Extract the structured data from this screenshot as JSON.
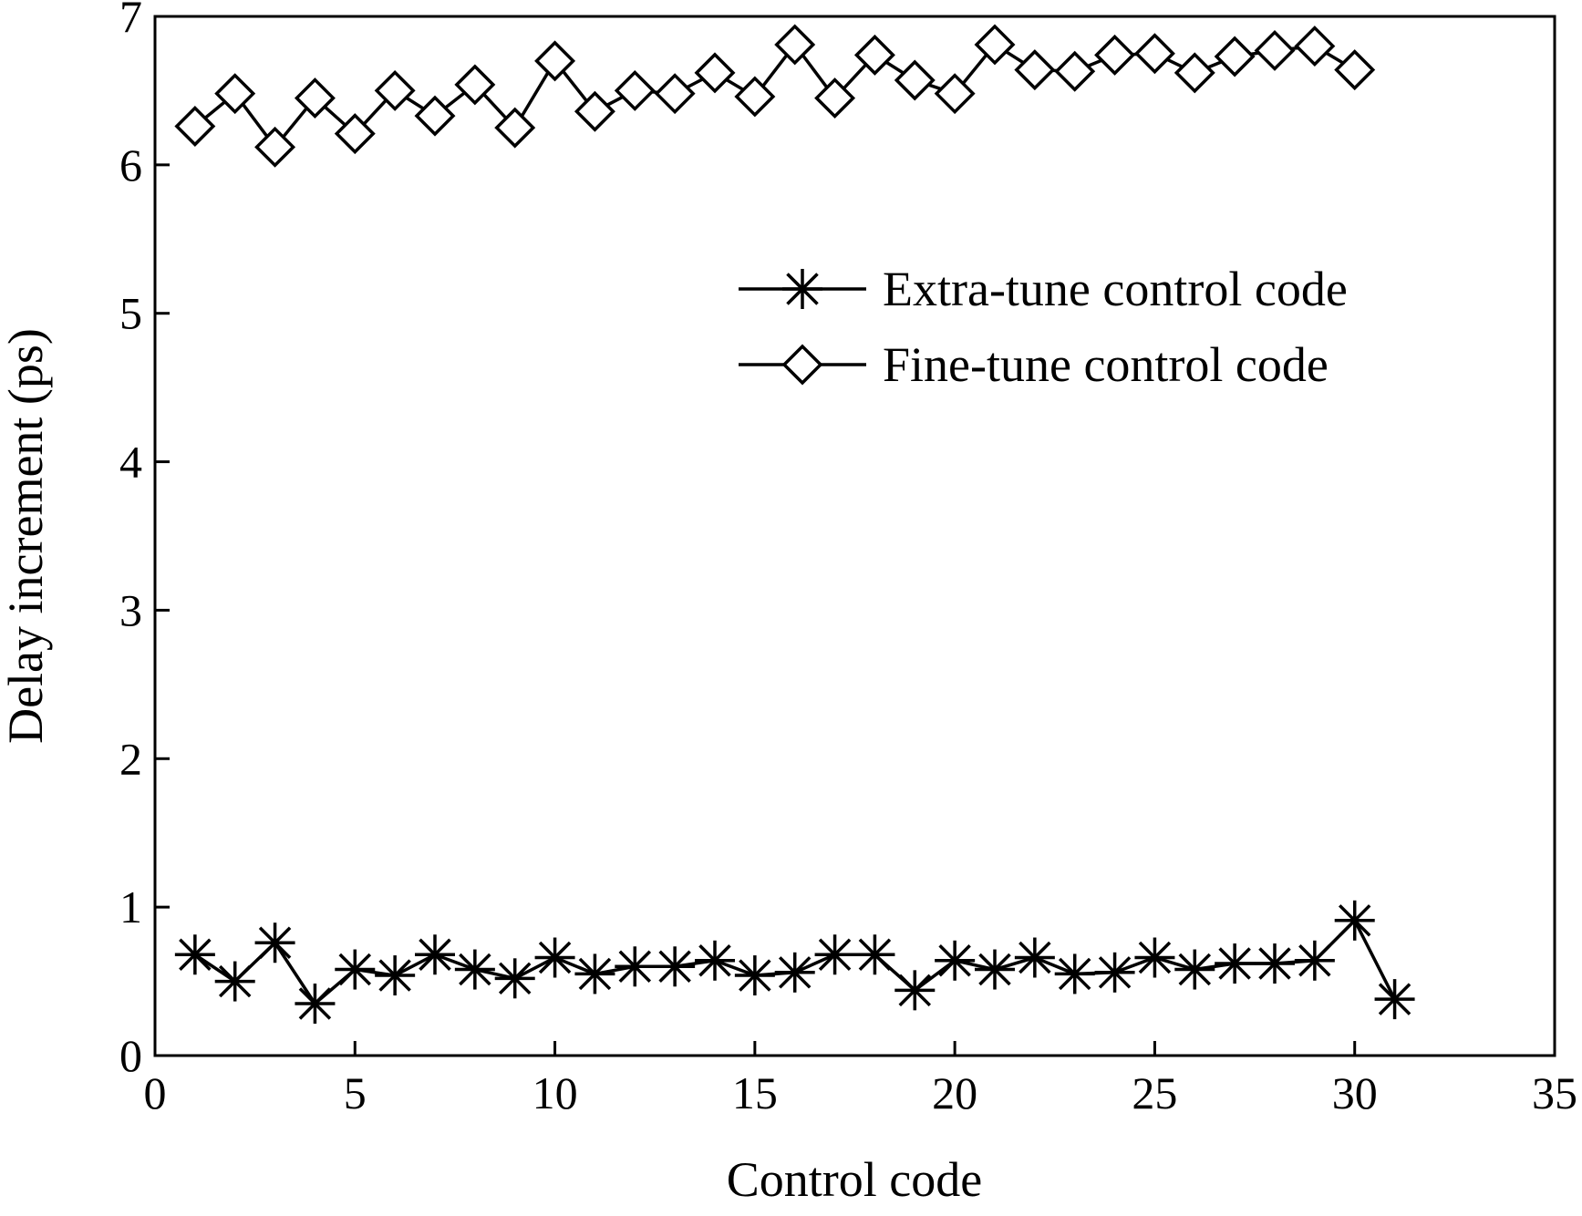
{
  "chart_data": {
    "type": "line",
    "xlabel": "Control code",
    "ylabel": "Delay increment (ps)",
    "xlim": [
      0,
      35
    ],
    "ylim": [
      0,
      7
    ],
    "xticks": [
      0,
      5,
      10,
      15,
      20,
      25,
      30,
      35
    ],
    "yticks": [
      0,
      1,
      2,
      3,
      4,
      5,
      6,
      7
    ],
    "grid": false,
    "legend_position": "upper-right",
    "series": [
      {
        "name": "Extra-tune control code",
        "marker": "asterisk",
        "x": [
          1,
          2,
          3,
          4,
          5,
          6,
          7,
          8,
          9,
          10,
          11,
          12,
          13,
          14,
          15,
          16,
          17,
          18,
          19,
          20,
          21,
          22,
          23,
          24,
          25,
          26,
          27,
          28,
          29,
          30,
          31
        ],
        "values": [
          0.68,
          0.5,
          0.76,
          0.35,
          0.58,
          0.54,
          0.68,
          0.58,
          0.52,
          0.66,
          0.55,
          0.6,
          0.6,
          0.64,
          0.54,
          0.56,
          0.68,
          0.68,
          0.44,
          0.64,
          0.58,
          0.66,
          0.55,
          0.56,
          0.66,
          0.58,
          0.62,
          0.62,
          0.64,
          0.91,
          0.38
        ]
      },
      {
        "name": "Fine-tune control code",
        "marker": "diamond",
        "x": [
          1,
          2,
          3,
          4,
          5,
          6,
          7,
          8,
          9,
          10,
          11,
          12,
          13,
          14,
          15,
          16,
          17,
          18,
          19,
          20,
          21,
          22,
          23,
          24,
          25,
          26,
          27,
          28,
          29,
          30
        ],
        "values": [
          6.26,
          6.48,
          6.12,
          6.45,
          6.21,
          6.5,
          6.33,
          6.54,
          6.25,
          6.7,
          6.36,
          6.5,
          6.48,
          6.62,
          6.46,
          6.81,
          6.45,
          6.74,
          6.57,
          6.48,
          6.81,
          6.64,
          6.63,
          6.74,
          6.75,
          6.62,
          6.73,
          6.77,
          6.8,
          6.64
        ]
      }
    ]
  }
}
